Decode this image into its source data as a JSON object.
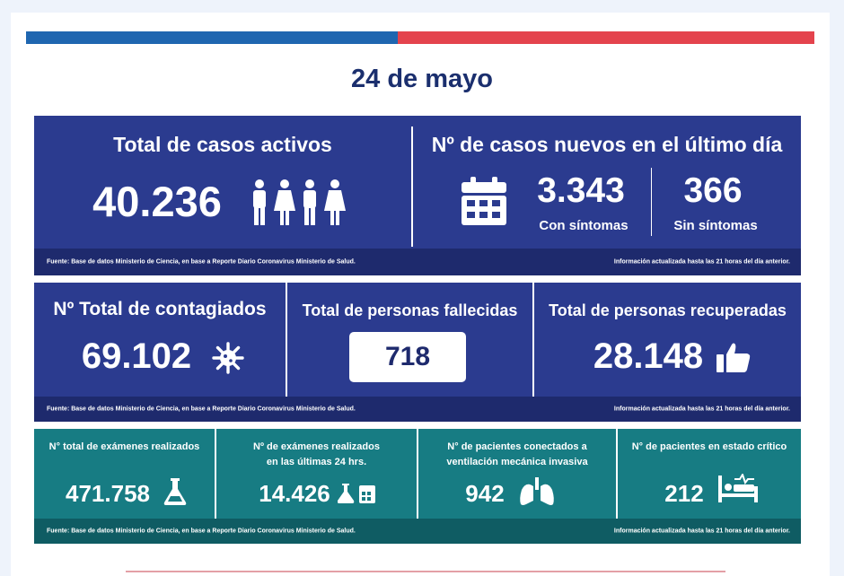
{
  "date": "24 de mayo",
  "active": {
    "title": "Total de casos activos",
    "value": "40.236",
    "icon": "people-icon"
  },
  "new_cases": {
    "title": "Nº de casos nuevos en el último día",
    "symptomatic_value": "3.343",
    "symptomatic_label": "Con síntomas",
    "asymptomatic_value": "366",
    "asymptomatic_label": "Sin síntomas",
    "icon": "calendar-icon"
  },
  "row1_footer": {
    "source": "Fuente: Base de datos Ministerio de Ciencia, en base a Reporte Diario Coronavirus Ministerio de Salud.",
    "updated": "Información actualizada hasta las 21 horas  del día anterior."
  },
  "total_infected": {
    "title": "Nº Total de contagiados",
    "value": "69.102",
    "icon": "virus-icon"
  },
  "deaths": {
    "title": "Total de personas fallecidas",
    "value": "718"
  },
  "recovered": {
    "title": "Total de personas recuperadas",
    "value": "28.148",
    "icon": "thumbs-up-icon"
  },
  "row2_footer": {
    "source": "Fuente: Base de datos Ministerio de Ciencia, en base a Reporte Diario Coronavirus Ministerio de Salud.",
    "updated": "Información actualizada hasta las 21 horas  del día anterior."
  },
  "exams_total": {
    "title": "N° total de exámenes realizados",
    "value": "471.758",
    "icon": "flask-icon"
  },
  "exams_24h": {
    "title_line1": "Nº de exámenes realizados",
    "title_line2": "en las últimas 24 hrs.",
    "value": "14.426",
    "icon": "flask-calendar-icon"
  },
  "ventilated": {
    "title_line1": "N° de pacientes conectados a",
    "title_line2": "ventilación mecánica invasiva",
    "value": "942",
    "icon": "lungs-icon"
  },
  "critical": {
    "title": "N° de pacientes en estado crítico",
    "value": "212",
    "icon": "hospital-bed-icon"
  },
  "row3_footer": {
    "source": "Fuente: Base de datos Ministerio de Ciencia, en base a Reporte Diario Coronavirus Ministerio de Salud.",
    "updated": "Información actualizada hasta las 21 horas  del día anterior."
  },
  "colors": {
    "navy": "#2b3b8f",
    "teal": "#177c83",
    "flag_blue": "#1f66b0",
    "flag_red": "#e4434d",
    "title": "#1b2f6e"
  }
}
